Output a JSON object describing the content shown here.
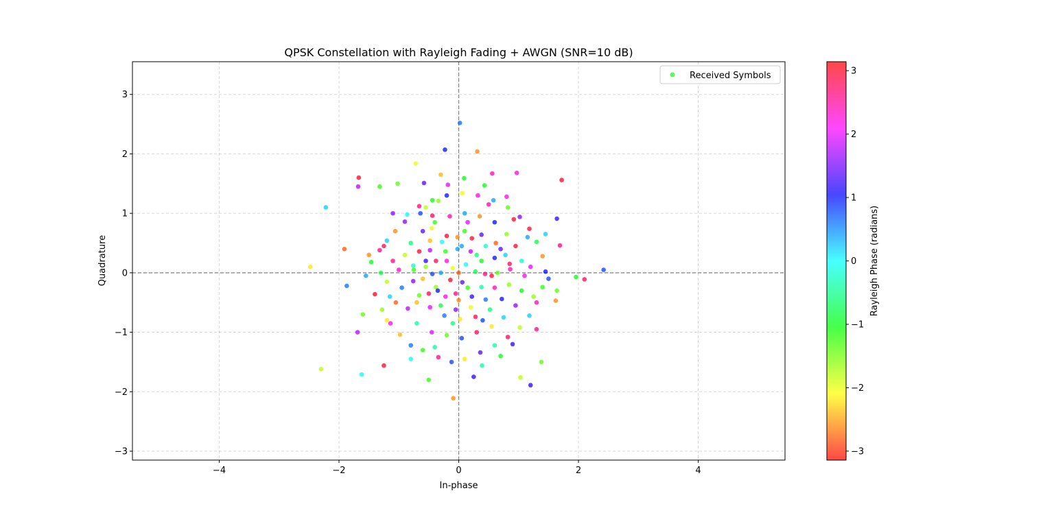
{
  "chart_data": {
    "type": "scatter",
    "title": "QPSK Constellation with Rayleigh Fading + AWGN (SNR=10 dB)",
    "xlabel": "In-phase",
    "ylabel": "Quadrature",
    "xlim": [
      -5.45,
      5.45
    ],
    "ylim": [
      -3.15,
      3.55
    ],
    "xticks": [
      -4,
      -2,
      0,
      2,
      4
    ],
    "yticks": [
      -3,
      -2,
      -1,
      0,
      1,
      2,
      3
    ],
    "xtick_labels": [
      "−4",
      "−2",
      "0",
      "2",
      "4"
    ],
    "ytick_labels": [
      "−3",
      "−2",
      "−1",
      "0",
      "1",
      "2",
      "3"
    ],
    "grid": true,
    "reference_lines": {
      "x": 0,
      "y": 0,
      "style": "dashed",
      "color": "#808080"
    },
    "legend": {
      "position": "top-right",
      "entries": [
        "Received Symbols"
      ],
      "marker_color": "#3cf03c"
    },
    "colorbar": {
      "label": "Rayleigh Phase (radians)",
      "range": [
        -3.1416,
        3.1416
      ],
      "ticks": [
        -3,
        -2,
        -1,
        0,
        1,
        2,
        3
      ],
      "tick_labels": [
        "−3",
        "−2",
        "−1",
        "0",
        "1",
        "2",
        "3"
      ],
      "colormap": "hsv"
    },
    "series": [
      {
        "points": [
          [
            0.02,
            2.52,
            0.6
          ],
          [
            -0.23,
            2.07,
            1.0
          ],
          [
            0.31,
            2.04,
            -2.6
          ],
          [
            -0.72,
            1.84,
            -2.0
          ],
          [
            1.72,
            1.56,
            3.0
          ],
          [
            -1.67,
            1.6,
            3.0
          ],
          [
            -1.68,
            1.45,
            1.8
          ],
          [
            -1.32,
            1.45,
            -1.2
          ],
          [
            -2.22,
            1.1,
            0.2
          ],
          [
            -2.48,
            0.1,
            -2.2
          ],
          [
            2.42,
            0.05,
            0.8
          ],
          [
            1.96,
            -0.07,
            -1.0
          ],
          [
            2.1,
            -0.11,
            2.8
          ],
          [
            -1.62,
            -1.71,
            0.0
          ],
          [
            -2.3,
            -1.62,
            -1.8
          ],
          [
            -0.09,
            -2.11,
            -2.6
          ],
          [
            1.2,
            -1.89,
            1.2
          ],
          [
            0.97,
            1.68,
            2.2
          ],
          [
            0.56,
            1.67,
            2.4
          ],
          [
            -0.58,
            1.51,
            1.4
          ],
          [
            0.09,
            1.59,
            -1.0
          ],
          [
            -1.91,
            0.4,
            -2.8
          ],
          [
            -1.87,
            -0.22,
            0.6
          ],
          [
            -1.69,
            -1.0,
            1.8
          ],
          [
            -1.25,
            -1.56,
            3.0
          ],
          [
            -0.5,
            -1.8,
            -1.2
          ],
          [
            0.39,
            -1.56,
            -0.4
          ],
          [
            1.38,
            -1.5,
            -1.4
          ],
          [
            1.64,
            0.91,
            1.2
          ],
          [
            1.69,
            0.46,
            2.6
          ],
          [
            1.62,
            -0.47,
            -2.6
          ],
          [
            1.64,
            -0.3,
            -1.4
          ],
          [
            -1.02,
            1.5,
            -1.4
          ],
          [
            -0.18,
            1.48,
            2.0
          ],
          [
            0.43,
            1.47,
            -1.0
          ],
          [
            1.03,
            -1.76,
            -1.8
          ],
          [
            0.92,
            0.9,
            3.0
          ],
          [
            0.8,
            1.28,
            2.2
          ],
          [
            -0.34,
            1.21,
            -1.6
          ],
          [
            -0.44,
            0.96,
            2.8
          ],
          [
            -0.64,
            1.0,
            0.8
          ],
          [
            -0.9,
            0.86,
            1.6
          ],
          [
            -1.06,
            0.7,
            -2.6
          ],
          [
            -1.2,
            0.54,
            0.2
          ],
          [
            -1.32,
            0.38,
            2.6
          ],
          [
            -1.46,
            0.18,
            -1.0
          ],
          [
            -1.55,
            -0.05,
            0.4
          ],
          [
            -1.4,
            -0.36,
            3.0
          ],
          [
            -1.28,
            -0.62,
            -1.6
          ],
          [
            -1.14,
            -0.85,
            2.2
          ],
          [
            -0.98,
            -1.04,
            -2.4
          ],
          [
            -0.8,
            -1.22,
            0.6
          ],
          [
            -0.6,
            -1.3,
            -1.2
          ],
          [
            -0.34,
            -1.42,
            2.6
          ],
          [
            -0.12,
            -1.5,
            0.8
          ],
          [
            0.1,
            -1.45,
            -2.2
          ],
          [
            0.36,
            -1.34,
            1.4
          ],
          [
            0.6,
            -1.22,
            -0.4
          ],
          [
            0.82,
            -1.08,
            2.8
          ],
          [
            1.02,
            -0.92,
            -1.8
          ],
          [
            1.18,
            -0.72,
            0.2
          ],
          [
            1.3,
            -0.5,
            2.4
          ],
          [
            1.4,
            -0.24,
            -1.2
          ],
          [
            1.45,
            0.02,
            1.0
          ],
          [
            1.4,
            0.28,
            -2.6
          ],
          [
            1.3,
            0.52,
            -0.8
          ],
          [
            1.18,
            0.74,
            3.0
          ],
          [
            1.02,
            0.94,
            1.6
          ],
          [
            0.82,
            1.1,
            -1.4
          ],
          [
            0.58,
            1.22,
            0.4
          ],
          [
            0.32,
            1.3,
            2.2
          ],
          [
            0.06,
            1.34,
            -2.0
          ],
          [
            -0.2,
            1.3,
            1.0
          ],
          [
            -0.44,
            1.22,
            -1.0
          ],
          [
            -0.66,
            1.12,
            2.6
          ],
          [
            -0.86,
            0.98,
            0.0
          ],
          [
            -0.2,
            0.62,
            3.0
          ],
          [
            0.1,
            0.7,
            -1.2
          ],
          [
            0.38,
            0.64,
            1.4
          ],
          [
            0.62,
            0.5,
            -2.8
          ],
          [
            0.78,
            0.3,
            0.2
          ],
          [
            0.86,
            0.06,
            2.4
          ],
          [
            0.84,
            -0.2,
            -1.6
          ],
          [
            0.72,
            -0.44,
            1.0
          ],
          [
            0.52,
            -0.62,
            -0.6
          ],
          [
            0.28,
            -0.74,
            2.8
          ],
          [
            0.02,
            -0.78,
            -2.2
          ],
          [
            -0.24,
            -0.72,
            0.6
          ],
          [
            -0.48,
            -0.58,
            2.0
          ],
          [
            -0.66,
            -0.38,
            -1.4
          ],
          [
            -0.76,
            -0.14,
            1.6
          ],
          [
            -0.76,
            0.12,
            -0.2
          ],
          [
            -0.66,
            0.36,
            3.0
          ],
          [
            -0.48,
            0.54,
            -2.4
          ],
          [
            -0.02,
            0.4,
            0.4
          ],
          [
            0.2,
            0.36,
            1.8
          ],
          [
            0.38,
            0.2,
            -1.0
          ],
          [
            0.44,
            -0.02,
            2.6
          ],
          [
            0.38,
            -0.24,
            -0.4
          ],
          [
            0.22,
            -0.4,
            1.2
          ],
          [
            0.0,
            -0.46,
            -2.6
          ],
          [
            -0.22,
            -0.4,
            2.2
          ],
          [
            -0.38,
            -0.24,
            -1.6
          ],
          [
            -0.44,
            -0.02,
            0.8
          ],
          [
            -0.38,
            0.2,
            2.8
          ],
          [
            -0.22,
            0.36,
            -1.2
          ],
          [
            0.12,
            0.14,
            0.0
          ],
          [
            -0.1,
            0.08,
            -2.0
          ],
          [
            0.06,
            -0.16,
            1.4
          ],
          [
            -0.14,
            -0.12,
            3.0
          ],
          [
            0.28,
            0.02,
            -0.8
          ],
          [
            -0.3,
            0.0,
            0.4
          ],
          [
            -0.9,
            0.3,
            -1.8
          ],
          [
            -1.0,
            0.05,
            2.4
          ],
          [
            -0.95,
            -0.25,
            0.6
          ],
          [
            -1.05,
            -0.5,
            -2.8
          ],
          [
            -0.85,
            -0.6,
            1.8
          ],
          [
            -0.7,
            -0.85,
            -0.4
          ],
          [
            -0.45,
            -1.0,
            2.0
          ],
          [
            -0.2,
            -1.05,
            -1.4
          ],
          [
            0.05,
            -1.1,
            0.8
          ],
          [
            0.3,
            -1.0,
            2.8
          ],
          [
            0.55,
            -0.9,
            -2.2
          ],
          [
            0.75,
            -0.75,
            0.2
          ],
          [
            0.95,
            -0.55,
            1.6
          ],
          [
            1.05,
            -0.3,
            -1.0
          ],
          [
            1.1,
            -0.05,
            2.2
          ],
          [
            1.05,
            0.2,
            -0.2
          ],
          [
            0.95,
            0.45,
            3.0
          ],
          [
            0.8,
            0.65,
            -1.6
          ],
          [
            0.6,
            0.85,
            1.0
          ],
          [
            0.35,
            0.95,
            -2.6
          ],
          [
            0.1,
            1.0,
            0.4
          ],
          [
            -0.15,
            0.95,
            2.4
          ],
          [
            -0.4,
            0.85,
            -1.2
          ],
          [
            -0.6,
            0.7,
            1.4
          ],
          [
            -0.8,
            0.5,
            -0.6
          ],
          [
            -1.1,
            0.2,
            2.6
          ],
          [
            -1.2,
            -0.15,
            -1.8
          ],
          [
            -1.15,
            -0.4,
            0.2
          ],
          [
            -0.55,
            0.2,
            1.2
          ],
          [
            -0.6,
            -0.1,
            -2.4
          ],
          [
            -0.5,
            -0.35,
            2.8
          ],
          [
            -0.3,
            -0.55,
            -0.8
          ],
          [
            -0.05,
            -0.62,
            1.6
          ],
          [
            0.2,
            -0.58,
            -2.0
          ],
          [
            0.45,
            -0.45,
            0.6
          ],
          [
            0.6,
            -0.25,
            2.4
          ],
          [
            0.65,
            0.0,
            -1.4
          ],
          [
            0.6,
            0.25,
            1.0
          ],
          [
            0.45,
            0.45,
            -0.2
          ],
          [
            0.22,
            0.58,
            3.0
          ],
          [
            -0.02,
            0.6,
            -2.6
          ],
          [
            -0.28,
            0.52,
            0.0
          ],
          [
            -0.48,
            0.38,
            1.8
          ],
          [
            0.15,
            -0.25,
            -1.2
          ],
          [
            -0.2,
            0.2,
            2.2
          ],
          [
            0.3,
            0.3,
            -0.6
          ],
          [
            -0.35,
            -0.3,
            1.0
          ],
          [
            0.0,
            0.0,
            -2.8
          ],
          [
            1.2,
            0.1,
            2.0
          ],
          [
            1.25,
            -0.4,
            -1.6
          ],
          [
            1.15,
            0.6,
            0.4
          ],
          [
            -1.3,
            0.0,
            -0.8
          ],
          [
            -1.25,
            0.45,
            2.8
          ],
          [
            -1.2,
            -0.8,
            -2.2
          ],
          [
            0.9,
            -1.2,
            1.2
          ],
          [
            -0.4,
            -1.25,
            -0.4
          ],
          [
            0.5,
            1.15,
            2.4
          ],
          [
            -0.55,
            1.1,
            -1.8
          ],
          [
            1.5,
            -0.1,
            0.8
          ],
          [
            -1.5,
            0.3,
            -2.6
          ],
          [
            1.3,
            -0.95,
            2.6
          ],
          [
            -1.1,
            1.0,
            1.6
          ],
          [
            0.7,
            -1.4,
            -1.0
          ],
          [
            -0.8,
            -1.45,
            0.0
          ],
          [
            0.25,
            -1.75,
            1.2
          ],
          [
            -0.3,
            1.65,
            -2.4
          ],
          [
            1.45,
            0.65,
            0.2
          ],
          [
            -1.6,
            -0.7,
            -1.4
          ],
          [
            0.85,
            0.15,
            2.8
          ],
          [
            -0.75,
            0.05,
            -1.2
          ],
          [
            0.4,
            -0.8,
            0.8
          ],
          [
            -0.45,
            0.75,
            -2.0
          ],
          [
            0.15,
            0.85,
            2.0
          ],
          [
            -0.1,
            -0.85,
            -0.6
          ],
          [
            0.7,
            0.4,
            1.4
          ],
          [
            -0.7,
            -0.5,
            -2.4
          ],
          [
            0.55,
            -0.05,
            3.0
          ],
          [
            -0.55,
            0.1,
            -1.6
          ],
          [
            0.05,
            0.45,
            0.4
          ],
          [
            -0.05,
            -0.35,
            2.6
          ]
        ]
      }
    ]
  }
}
